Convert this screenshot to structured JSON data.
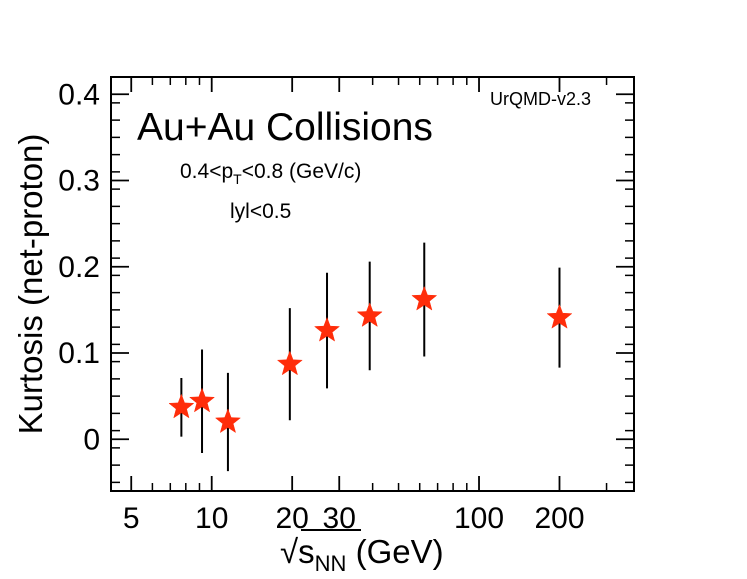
{
  "chart_data": {
    "type": "scatter",
    "title": "Au+Au Collisions",
    "model_label": "UrQMD-v2.3",
    "annotations": {
      "pt_range": {
        "prefix": "0.4<p",
        "subscript": "T",
        "suffix": "<0.8 (GeV/c)"
      },
      "rapidity": "lyl<0.5"
    },
    "xlabel": {
      "sqrt_symbol": "√",
      "main": "s",
      "subscript": "NN",
      "suffix": " (GeV)"
    },
    "ylabel": "Kurtosis (net-proton)",
    "xscale": "log",
    "xlim": [
      4.2,
      380
    ],
    "ylim": [
      -0.06,
      0.42
    ],
    "x_ticks": [
      {
        "value": 5,
        "label": "5"
      },
      {
        "value": 10,
        "label": "10"
      },
      {
        "value": 20,
        "label": "20"
      },
      {
        "value": 30,
        "label": "30"
      },
      {
        "value": 100,
        "label": "100"
      },
      {
        "value": 200,
        "label": "200"
      }
    ],
    "y_ticks": [
      {
        "value": 0,
        "label": "0"
      },
      {
        "value": 0.1,
        "label": "0.1"
      },
      {
        "value": 0.2,
        "label": "0.2"
      },
      {
        "value": 0.3,
        "label": "0.3"
      },
      {
        "value": 0.4,
        "label": "0.4"
      }
    ],
    "series": [
      {
        "name": "UrQMD-v2.3",
        "marker": "star",
        "color": "#ff2d0a",
        "points": [
          {
            "x": 7.7,
            "y": 0.037,
            "error": 0.034
          },
          {
            "x": 9.2,
            "y": 0.044,
            "error": 0.06
          },
          {
            "x": 11.5,
            "y": 0.02,
            "error": 0.057
          },
          {
            "x": 19.6,
            "y": 0.087,
            "error": 0.065
          },
          {
            "x": 27,
            "y": 0.126,
            "error": 0.067
          },
          {
            "x": 39,
            "y": 0.143,
            "error": 0.063
          },
          {
            "x": 62.4,
            "y": 0.162,
            "error": 0.066
          },
          {
            "x": 200,
            "y": 0.141,
            "error": 0.058
          }
        ]
      }
    ]
  }
}
